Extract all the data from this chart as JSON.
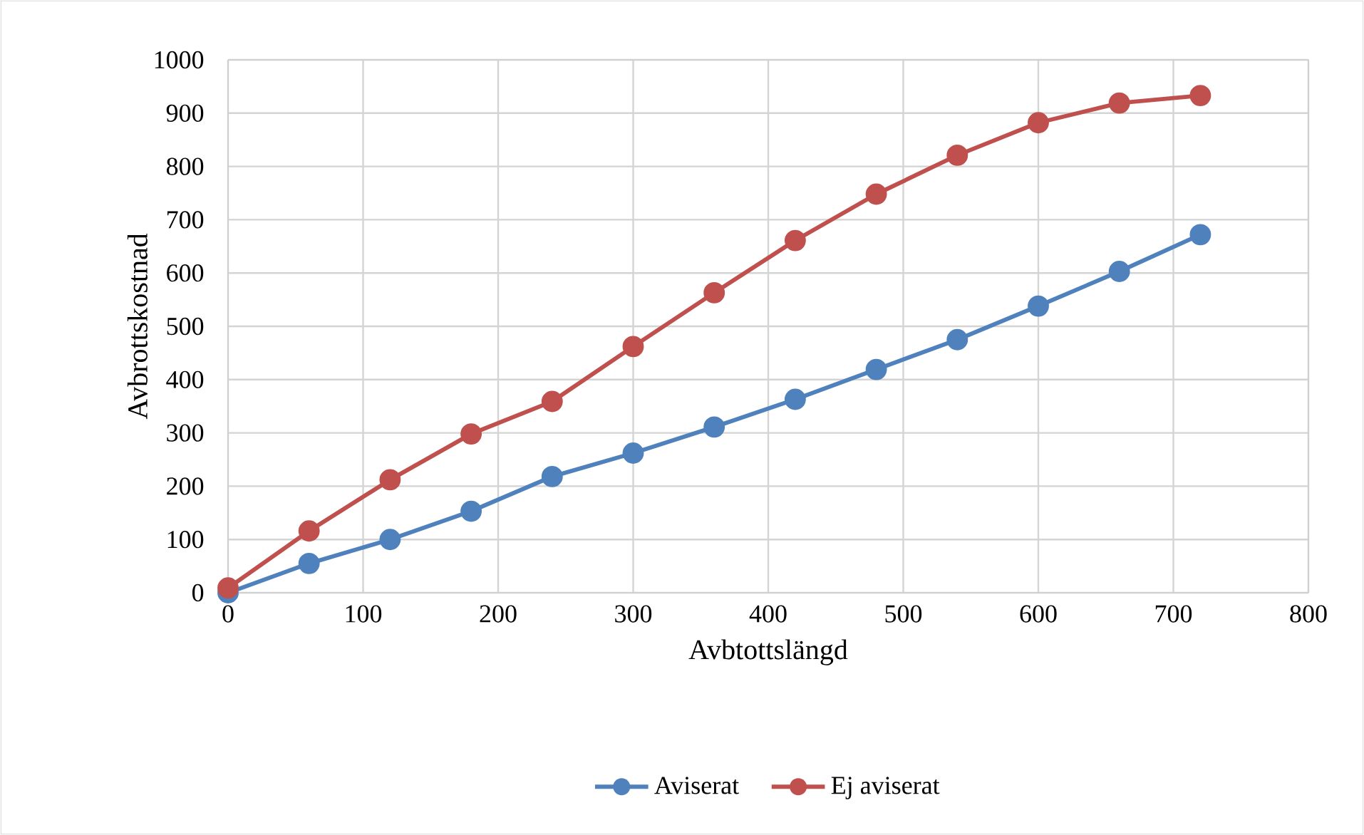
{
  "chart_data": {
    "type": "line",
    "xlabel": "Avbtottslängd",
    "ylabel": "Avbrottskostnad",
    "x": [
      0,
      60,
      120,
      180,
      240,
      300,
      360,
      420,
      480,
      540,
      600,
      660,
      720
    ],
    "series": [
      {
        "name": "Aviserat",
        "color": "#4f81bd",
        "values": [
          0,
          55,
          100,
          153,
          218,
          262,
          311,
          363,
          419,
          475,
          538,
          603,
          672
        ]
      },
      {
        "name": "Ej aviserat",
        "color": "#c0504d",
        "values": [
          9,
          116,
          212,
          298,
          359,
          462,
          563,
          661,
          748,
          821,
          882,
          919,
          933
        ]
      }
    ],
    "xlim": [
      0,
      800
    ],
    "xticks": [
      0,
      100,
      200,
      300,
      400,
      500,
      600,
      700,
      800
    ],
    "ylim": [
      0,
      1000
    ],
    "yticks": [
      0,
      100,
      200,
      300,
      400,
      500,
      600,
      700,
      800,
      900,
      1000
    ],
    "grid": true,
    "legend": "bottom",
    "marker": "circle",
    "line_style": "solid"
  }
}
